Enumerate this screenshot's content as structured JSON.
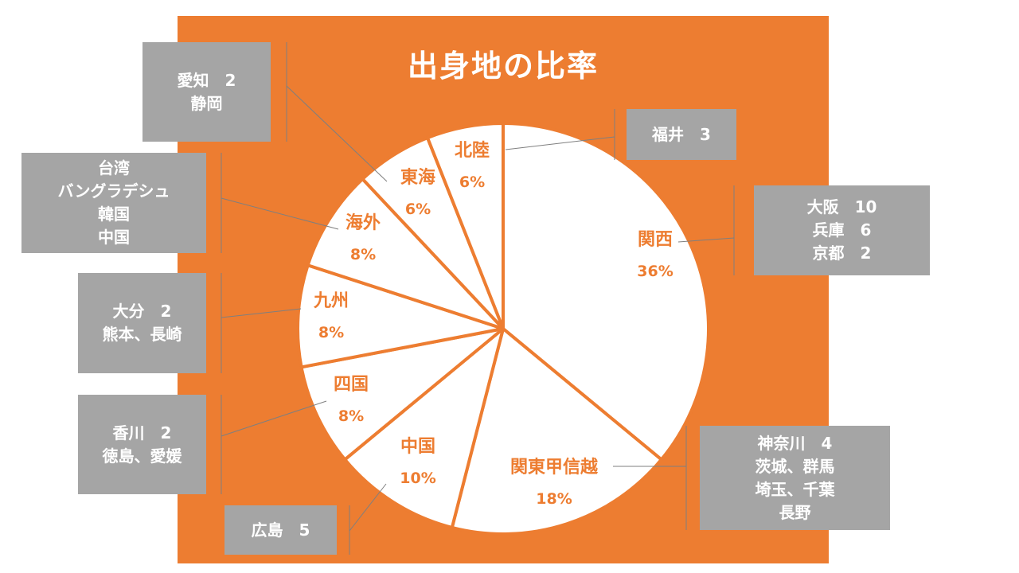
{
  "chart_data": {
    "type": "pie",
    "title": "出身地の比率",
    "slices": [
      {
        "label": "関西",
        "pct_label": "36%",
        "value": 36
      },
      {
        "label": "関東甲信越",
        "pct_label": "18%",
        "value": 18
      },
      {
        "label": "中国",
        "pct_label": "10%",
        "value": 10
      },
      {
        "label": "四国",
        "pct_label": "8%",
        "value": 8
      },
      {
        "label": "九州",
        "pct_label": "8%",
        "value": 8
      },
      {
        "label": "海外",
        "pct_label": "8%",
        "value": 8
      },
      {
        "label": "東海",
        "pct_label": "6%",
        "value": 6
      },
      {
        "label": "北陸",
        "pct_label": "6%",
        "value": 6
      }
    ],
    "annotations": [
      {
        "id": "kansai",
        "lines": [
          "大阪　10",
          "兵庫　6",
          "京都　2"
        ]
      },
      {
        "id": "kanto",
        "lines": [
          "神奈川　4",
          "茨城、群馬",
          "埼玉、千葉",
          "長野"
        ]
      },
      {
        "id": "chugoku",
        "lines": [
          "広島　5"
        ]
      },
      {
        "id": "shikoku",
        "lines": [
          "香川　2",
          "徳島、愛媛"
        ]
      },
      {
        "id": "kyushu",
        "lines": [
          "大分　2",
          "熊本、長崎"
        ]
      },
      {
        "id": "overseas",
        "lines": [
          "台湾",
          "バングラデシュ",
          "韓国",
          "中国"
        ]
      },
      {
        "id": "tokai",
        "lines": [
          "愛知　2",
          "静岡"
        ]
      },
      {
        "id": "hokuriku",
        "lines": [
          "福井　3"
        ]
      }
    ],
    "colors": {
      "background": "#ED7D31",
      "slice_fill": "#FFFFFF",
      "slice_border": "#ED7D31",
      "label_text": "#ED7D31",
      "callout_fill": "#A5A5A5",
      "callout_text": "#FFFFFF",
      "leader_line": "#7F7F7F",
      "title_text": "#FFFFFF"
    }
  }
}
